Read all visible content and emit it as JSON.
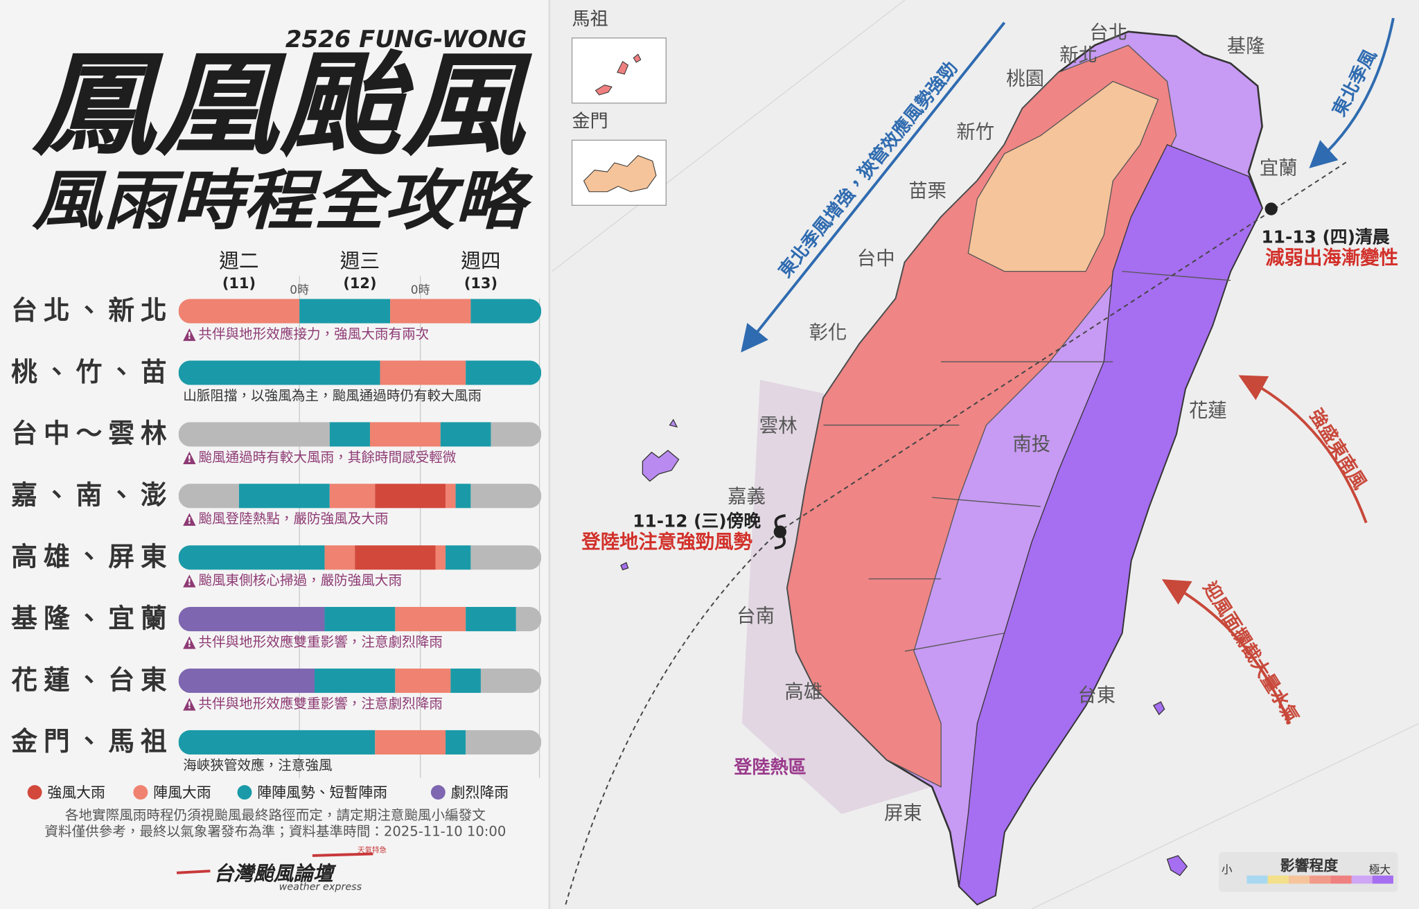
{
  "header": {
    "code": "2526 FUNG-WONG",
    "title": "鳳凰颱風",
    "subtitle": "風雨時程全攻略"
  },
  "timeline": {
    "days": [
      {
        "name": "週二",
        "date": "(11)"
      },
      {
        "name": "週三",
        "date": "(12)"
      },
      {
        "name": "週四",
        "date": "(13)"
      }
    ],
    "xlim": [
      0,
      72
    ],
    "xticks": [
      {
        "value": 24,
        "label": "0時"
      },
      {
        "value": 48,
        "label": "0時"
      }
    ],
    "rows": [
      {
        "region": "台北、新北",
        "warning": true,
        "note": "共伴與地形效應接力，強風大雨有兩次",
        "segments": [
          {
            "start": 0,
            "end": 24,
            "color": "#ef8270"
          },
          {
            "start": 24,
            "end": 42,
            "color": "#1a9aa8"
          },
          {
            "start": 42,
            "end": 58,
            "color": "#ef8270"
          },
          {
            "start": 58,
            "end": 72,
            "color": "#1a9aa8"
          }
        ]
      },
      {
        "region": "桃、竹、苗",
        "warning": false,
        "note": "山脈阻擋，以強風為主，颱風通過時仍有較大風雨",
        "segments": [
          {
            "start": 0,
            "end": 40,
            "color": "#1a9aa8"
          },
          {
            "start": 40,
            "end": 57,
            "color": "#ef8270"
          },
          {
            "start": 57,
            "end": 72,
            "color": "#1a9aa8"
          }
        ]
      },
      {
        "region": "台中～雲林",
        "warning": true,
        "note": "颱風通過時有較大風雨，其餘時間感受輕微",
        "segments": [
          {
            "start": 0,
            "end": 30,
            "color": "#b9b9b9"
          },
          {
            "start": 30,
            "end": 38,
            "color": "#1a9aa8"
          },
          {
            "start": 38,
            "end": 52,
            "color": "#ef8270"
          },
          {
            "start": 52,
            "end": 62,
            "color": "#1a9aa8"
          },
          {
            "start": 62,
            "end": 72,
            "color": "#b9b9b9"
          }
        ]
      },
      {
        "region": "嘉、南、澎",
        "warning": true,
        "note": "颱風登陸熱點，嚴防強風及大雨",
        "segments": [
          {
            "start": 0,
            "end": 12,
            "color": "#b9b9b9"
          },
          {
            "start": 12,
            "end": 30,
            "color": "#1a9aa8"
          },
          {
            "start": 30,
            "end": 39,
            "color": "#ef8270"
          },
          {
            "start": 39,
            "end": 53,
            "color": "#d2493c"
          },
          {
            "start": 53,
            "end": 55,
            "color": "#ef8270"
          },
          {
            "start": 55,
            "end": 58,
            "color": "#1a9aa8"
          },
          {
            "start": 58,
            "end": 72,
            "color": "#b9b9b9"
          }
        ]
      },
      {
        "region": "高雄、屏東",
        "warning": true,
        "note": "颱風東側核心掃過，嚴防強風大雨",
        "segments": [
          {
            "start": 0,
            "end": 29,
            "color": "#1a9aa8"
          },
          {
            "start": 29,
            "end": 35,
            "color": "#ef8270"
          },
          {
            "start": 35,
            "end": 51,
            "color": "#d2493c"
          },
          {
            "start": 51,
            "end": 53,
            "color": "#ef8270"
          },
          {
            "start": 53,
            "end": 58,
            "color": "#1a9aa8"
          },
          {
            "start": 58,
            "end": 72,
            "color": "#b9b9b9"
          }
        ]
      },
      {
        "region": "基隆、宜蘭",
        "warning": true,
        "note": "共伴與地形效應雙重影響，注意劇烈降雨",
        "segments": [
          {
            "start": 0,
            "end": 29,
            "color": "#7e66b0"
          },
          {
            "start": 29,
            "end": 43,
            "color": "#1a9aa8"
          },
          {
            "start": 43,
            "end": 57,
            "color": "#ef8270"
          },
          {
            "start": 57,
            "end": 67,
            "color": "#1a9aa8"
          },
          {
            "start": 67,
            "end": 72,
            "color": "#b9b9b9"
          }
        ]
      },
      {
        "region": "花蓮、台東",
        "warning": true,
        "note": "共伴與地形效應雙重影響，注意劇烈降雨",
        "segments": [
          {
            "start": 0,
            "end": 27,
            "color": "#7e66b0"
          },
          {
            "start": 27,
            "end": 43,
            "color": "#1a9aa8"
          },
          {
            "start": 43,
            "end": 54,
            "color": "#ef8270"
          },
          {
            "start": 54,
            "end": 60,
            "color": "#1a9aa8"
          },
          {
            "start": 60,
            "end": 72,
            "color": "#b9b9b9"
          }
        ]
      },
      {
        "region": "金門、馬祖",
        "warning": false,
        "note": "海峽狹管效應，注意強風",
        "segments": [
          {
            "start": 0,
            "end": 39,
            "color": "#1a9aa8"
          },
          {
            "start": 39,
            "end": 53,
            "color": "#ef8270"
          },
          {
            "start": 53,
            "end": 57,
            "color": "#1a9aa8"
          },
          {
            "start": 57,
            "end": 72,
            "color": "#b9b9b9"
          }
        ]
      }
    ],
    "legend": [
      {
        "name": "強風大雨",
        "color": "#d2493c"
      },
      {
        "name": "陣風大雨",
        "color": "#ef8270"
      },
      {
        "name": "陣陣風勢、短暫陣雨",
        "color": "#1a9aa8"
      },
      {
        "name": "劇烈降雨",
        "color": "#7e66b0"
      }
    ],
    "footnotes": [
      "各地實際風雨時程仍須視颱風最終路徑而定，請定期注意颱風小編發文",
      "資料僅供參考，最終以氣象署發布為準；資料基準時間：2025-11-10 10:00"
    ]
  },
  "brand": {
    "name": "台灣颱風論壇",
    "tagline": "weather express",
    "badge": "天氣特急"
  },
  "map": {
    "insets": [
      "馬祖",
      "金門"
    ],
    "labels": [
      "台北",
      "新北",
      "基隆",
      "桃園",
      "新竹",
      "宜蘭",
      "苗栗",
      "台中",
      "彰化",
      "雲林",
      "南投",
      "花蓮",
      "嘉義",
      "台南",
      "高雄",
      "台東",
      "屏東"
    ],
    "annotations": [
      {
        "time": "11-12 (三)傍晚",
        "text": "登陸地注意強勁風勢"
      },
      {
        "time": "11-13 (四)清晨",
        "text": "減弱出海漸變性"
      }
    ],
    "zone": "登陸熱區",
    "arrows": [
      "東北季風增強，狹管效應風勢強勁",
      "東北季風",
      "強盛東南風",
      "迎風面攔截大量水氣"
    ],
    "legend": {
      "title": "影響程度",
      "low": "小",
      "high": "極大",
      "colors": [
        "#a8d8f0",
        "#f4e08a",
        "#f6c49a",
        "#f29a8a",
        "#ef8080",
        "#cfa6f5",
        "#a66ef0"
      ]
    }
  }
}
